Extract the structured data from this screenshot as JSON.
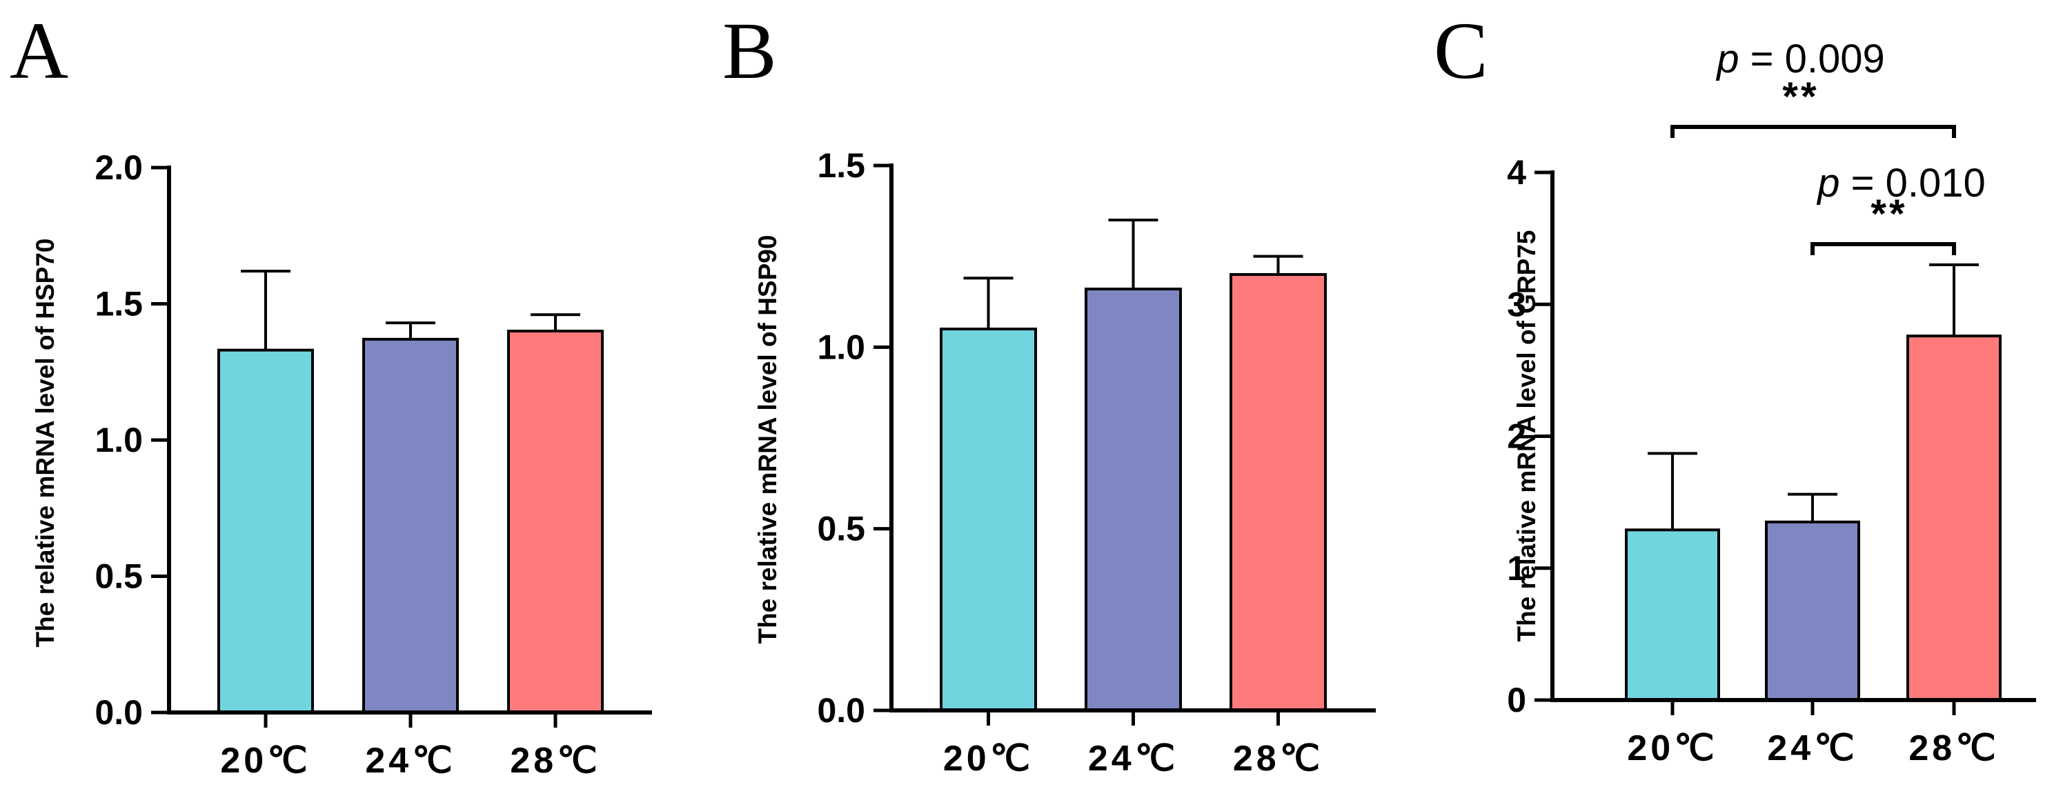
{
  "chart_data": [
    {
      "type": "bar",
      "panel": "A",
      "categories": [
        "20℃",
        "24℃",
        "28℃"
      ],
      "values": [
        1.33,
        1.37,
        1.4
      ],
      "errors": [
        0.29,
        0.06,
        0.06
      ],
      "ylabel": "The relative mRNA level of HSP70",
      "ylim": [
        0,
        2.0
      ],
      "yticks": [
        "0.0",
        "0.5",
        "1.0",
        "1.5",
        "2.0"
      ],
      "yticks_values": [
        0,
        0.5,
        1.0,
        1.5,
        2.0
      ],
      "colors": [
        "#71D5E0",
        "#7F87C2",
        "#FF7B7B"
      ],
      "annotations": []
    },
    {
      "type": "bar",
      "panel": "B",
      "categories": [
        "20℃",
        "24℃",
        "28℃"
      ],
      "values": [
        1.05,
        1.16,
        1.2
      ],
      "errors": [
        0.14,
        0.19,
        0.05
      ],
      "ylabel": "The relative mRNA level of HSP90",
      "ylim": [
        0,
        1.5
      ],
      "yticks": [
        "0.0",
        "0.5",
        "1.0",
        "1.5"
      ],
      "yticks_values": [
        0,
        0.5,
        1.0,
        1.5
      ],
      "colors": [
        "#71D5E0",
        "#7F87C2",
        "#FF7B7B"
      ],
      "annotations": []
    },
    {
      "type": "bar",
      "panel": "C",
      "categories": [
        "20℃",
        "24℃",
        "28℃"
      ],
      "values": [
        1.29,
        1.35,
        2.76
      ],
      "errors": [
        0.58,
        0.21,
        0.54
      ],
      "ylabel": "The relative mRNA level of GRP75",
      "ylim": [
        0,
        4
      ],
      "yticks": [
        "0",
        "1",
        "2",
        "3",
        "4"
      ],
      "yticks_values": [
        0,
        1,
        2,
        3,
        4
      ],
      "colors": [
        "#71D5E0",
        "#7F87C2",
        "#FF7B7B"
      ],
      "annotations": [
        {
          "from": 0,
          "to": 2,
          "p_symbol": "p",
          "p_rest": " = 0.009",
          "stars": "**"
        },
        {
          "from": 1,
          "to": 2,
          "p_symbol": "p",
          "p_rest": " = 0.010",
          "stars": "**"
        }
      ]
    }
  ]
}
